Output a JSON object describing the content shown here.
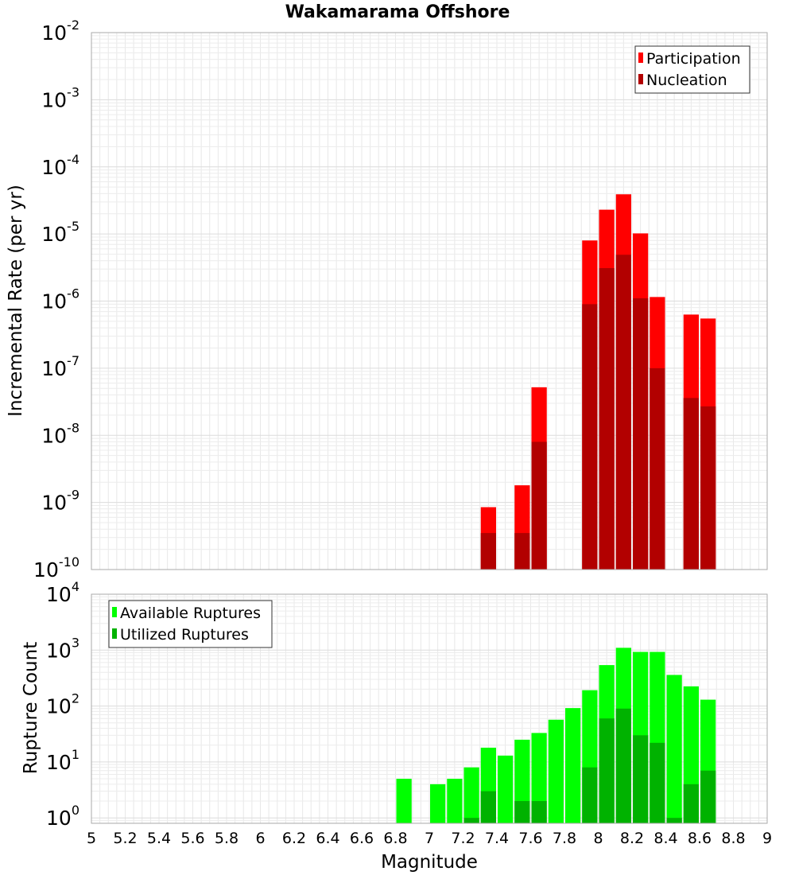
{
  "title": "Wakamarama Offshore",
  "x_axis": {
    "label": "Magnitude",
    "ticks": [
      "5",
      "5.2",
      "5.4",
      "5.6",
      "5.8",
      "6",
      "6.2",
      "6.4",
      "6.6",
      "6.8",
      "7",
      "7.2",
      "7.4",
      "7.6",
      "7.8",
      "8",
      "8.2",
      "8.4",
      "8.6",
      "8.8",
      "9"
    ]
  },
  "chart_data": [
    {
      "type": "bar",
      "title": "Wakamarama Offshore",
      "xlabel": "",
      "ylabel": "Incremental Rate (per yr)",
      "yscale": "log",
      "xlim": [
        5,
        9
      ],
      "ylim": [
        1e-10,
        0.01
      ],
      "y_ticks": [
        {
          "base": "10",
          "exp": "-10"
        },
        {
          "base": "10",
          "exp": "-9"
        },
        {
          "base": "10",
          "exp": "-8"
        },
        {
          "base": "10",
          "exp": "-7"
        },
        {
          "base": "10",
          "exp": "-6"
        },
        {
          "base": "10",
          "exp": "-5"
        },
        {
          "base": "10",
          "exp": "-4"
        },
        {
          "base": "10",
          "exp": "-3"
        },
        {
          "base": "10",
          "exp": "-2"
        }
      ],
      "grid": true,
      "legend_position": "top-right",
      "bin_width": 0.1,
      "series": [
        {
          "name": "Participation",
          "color": "#ff0000",
          "x": [
            7.35,
            7.55,
            7.65,
            7.95,
            8.05,
            8.15,
            8.25,
            8.35,
            8.55,
            8.65
          ],
          "values": [
            8.5e-10,
            1.8e-09,
            5.2e-08,
            8e-06,
            2.3e-05,
            3.9e-05,
            1.02e-05,
            1.15e-06,
            6.3e-07,
            5.5e-07
          ]
        },
        {
          "name": "Nucleation",
          "color": "#b20000",
          "x": [
            7.35,
            7.55,
            7.65,
            7.95,
            8.05,
            8.15,
            8.25,
            8.35,
            8.55,
            8.65
          ],
          "values": [
            3.5e-10,
            3.5e-10,
            8e-09,
            9e-07,
            3.1e-06,
            4.9e-06,
            1.1e-06,
            1e-07,
            3.6e-08,
            2.7e-08
          ]
        }
      ]
    },
    {
      "type": "bar",
      "title": "",
      "xlabel": "Magnitude",
      "ylabel": "Rupture Count",
      "yscale": "log",
      "xlim": [
        5,
        9
      ],
      "ylim": [
        0.8,
        10000
      ],
      "y_ticks": [
        {
          "base": "10",
          "exp": "0"
        },
        {
          "base": "10",
          "exp": "1"
        },
        {
          "base": "10",
          "exp": "2"
        },
        {
          "base": "10",
          "exp": "3"
        },
        {
          "base": "10",
          "exp": "4"
        }
      ],
      "grid": true,
      "legend_position": "top-left",
      "bin_width": 0.1,
      "series": [
        {
          "name": "Available Ruptures",
          "color": "#00ff00",
          "x": [
            6.85,
            7.05,
            7.15,
            7.25,
            7.35,
            7.45,
            7.55,
            7.65,
            7.75,
            7.85,
            7.95,
            8.05,
            8.15,
            8.25,
            8.35,
            8.45,
            8.55,
            8.65
          ],
          "values": [
            5,
            4,
            5,
            8,
            18,
            13,
            25,
            33,
            57,
            92,
            192,
            540,
            1100,
            930,
            930,
            360,
            225,
            130
          ]
        },
        {
          "name": "Utilized Ruptures",
          "color": "#00b200",
          "x": [
            7.25,
            7.35,
            7.55,
            7.65,
            7.95,
            8.05,
            8.15,
            8.25,
            8.35,
            8.45,
            8.55,
            8.65
          ],
          "values": [
            1,
            3,
            2,
            2,
            8,
            60,
            90,
            30,
            22,
            1,
            4,
            7
          ]
        }
      ]
    }
  ]
}
